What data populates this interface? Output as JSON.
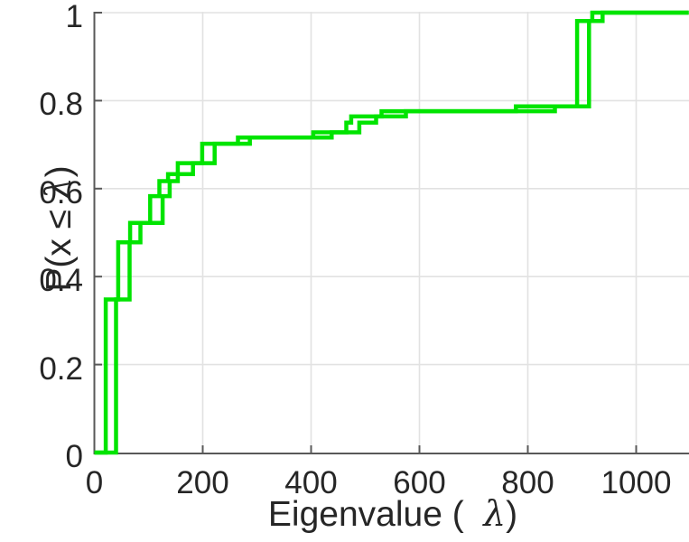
{
  "labels": {
    "ylabel_pre": "P(x ≤ ",
    "xlabel_pre": "Eigenvalue (  ",
    "lambda": "λ",
    "paren_close": ")"
  },
  "chart_data": {
    "type": "line",
    "subtype": "ecdf-step-staircase",
    "title": "",
    "xlabel": "Eigenvalue ( λ)",
    "ylabel": "P(x ≤ λ)",
    "xlim": [
      0,
      1097
    ],
    "ylim": [
      0,
      1
    ],
    "grid": true,
    "legend": "none",
    "xticks": [
      0,
      200,
      400,
      600,
      800,
      1000
    ],
    "xtick_labels": [
      "0",
      "200",
      "400",
      "600",
      "800",
      "1000"
    ],
    "yticks": [
      0,
      0.2,
      0.4,
      0.6,
      0.8,
      1
    ],
    "ytick_labels": [
      "0",
      "0.2",
      "0.4",
      "0.6",
      "0.8",
      "1"
    ],
    "line_color": "#00e400",
    "line_width": 4.5,
    "grid_color": "#e2e2e2",
    "axis_color": "#595959",
    "text_color": "#262626",
    "cdf_levels": [
      0.348,
      0.478,
      0.522,
      0.583,
      0.617,
      0.633,
      0.658,
      0.702,
      0.716,
      0.728,
      0.75,
      0.764,
      0.776,
      0.787,
      0.981,
      1.0
    ],
    "series": [
      {
        "name": "ecdf-step-left",
        "start_x": 0,
        "end_x": 1097,
        "steps": [
          [
            21,
            0.348
          ],
          [
            44,
            0.478
          ],
          [
            66,
            0.522
          ],
          [
            103,
            0.583
          ],
          [
            120,
            0.617
          ],
          [
            136,
            0.633
          ],
          [
            154,
            0.658
          ],
          [
            199,
            0.702
          ],
          [
            265,
            0.716
          ],
          [
            404,
            0.728
          ],
          [
            465,
            0.75
          ],
          [
            474,
            0.764
          ],
          [
            530,
            0.776
          ],
          [
            778,
            0.787
          ],
          [
            891,
            0.981
          ],
          [
            919,
            1.0
          ]
        ]
      },
      {
        "name": "ecdf-step-right",
        "start_x": 0,
        "end_x": 1097,
        "steps": [
          [
            40,
            0.348
          ],
          [
            65,
            0.478
          ],
          [
            85,
            0.522
          ],
          [
            126,
            0.583
          ],
          [
            139,
            0.617
          ],
          [
            154,
            0.633
          ],
          [
            182,
            0.658
          ],
          [
            222,
            0.702
          ],
          [
            287,
            0.716
          ],
          [
            438,
            0.728
          ],
          [
            489,
            0.75
          ],
          [
            520,
            0.764
          ],
          [
            575,
            0.776
          ],
          [
            850,
            0.787
          ],
          [
            913,
            0.981
          ],
          [
            938,
            1.0
          ]
        ]
      }
    ]
  }
}
